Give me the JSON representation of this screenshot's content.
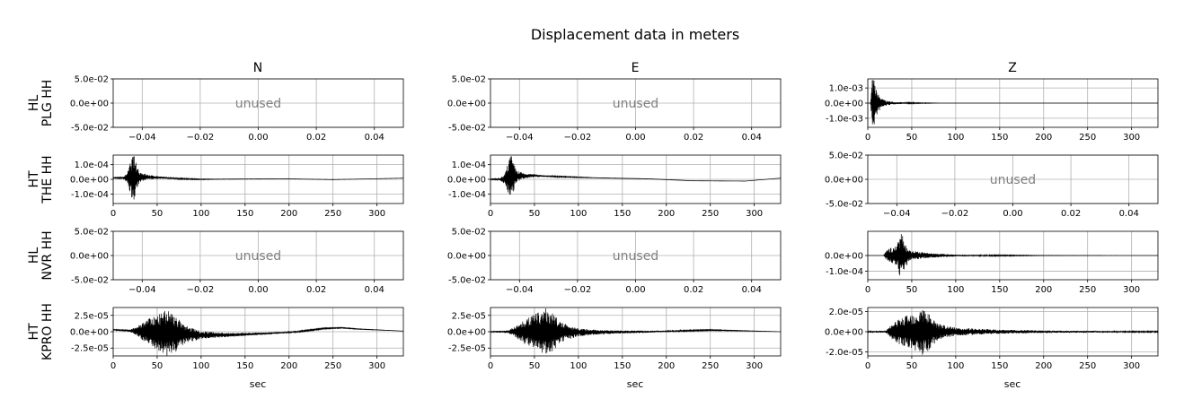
{
  "chart_data": {
    "type": "line",
    "title": "Displacement data in meters",
    "columns": [
      "N",
      "E",
      "Z"
    ],
    "row_labels": [
      [
        "HL",
        "PLG HH"
      ],
      [
        "HT",
        "THE HH"
      ],
      [
        "HL",
        "NVR HH"
      ],
      [
        "HT",
        "KPRO HH"
      ]
    ],
    "xlabel": "sec",
    "unused_label": "unused",
    "used_xlim": [
      0,
      330
    ],
    "used_xticks": [
      "0",
      "50",
      "100",
      "150",
      "200",
      "250",
      "300"
    ],
    "used_xtick_values": [
      0,
      50,
      100,
      150,
      200,
      250,
      300
    ],
    "unused_xlim": [
      -0.05,
      0.05
    ],
    "unused_xticks": [
      "−0.04",
      "−0.02",
      "0.00",
      "0.02",
      "0.04"
    ],
    "unused_xtick_values": [
      -0.04,
      -0.02,
      0,
      0.02,
      0.04
    ],
    "unused_yticks": [
      "5.0e-02",
      "0.0e+00",
      "-5.0e-02"
    ],
    "unused_ytick_values": [
      0.05,
      0,
      -0.05
    ],
    "unused_ylim": [
      -0.05,
      0.05
    ],
    "panels": [
      [
        {
          "unused": true
        },
        {
          "unused": true
        },
        {
          "unused": false,
          "ylim": [
            -0.0016,
            0.0016
          ],
          "yticks": [
            "1.0e-03",
            "0.0e+00",
            "-1.0e-03"
          ],
          "ytick_values": [
            0.001,
            0,
            -0.001
          ],
          "envelope": [
            [
              0,
              0
            ],
            [
              3,
              0
            ],
            [
              5,
              0.0016
            ],
            [
              7,
              0.0016
            ],
            [
              9,
              0.001
            ],
            [
              12,
              0.0006
            ],
            [
              16,
              0.0003
            ],
            [
              22,
              0.00015
            ],
            [
              30,
              8e-05
            ],
            [
              45,
              4e-05
            ],
            [
              60,
              2e-05
            ],
            [
              80,
              5e-06
            ],
            [
              100,
              0
            ],
            [
              330,
              0
            ]
          ]
        }
      ],
      [
        {
          "unused": false,
          "ylim": [
            -0.000165,
            0.000165
          ],
          "yticks": [
            "1.0e-04",
            "0.0e+00",
            "-1.0e-04"
          ],
          "ytick_values": [
            0.0001,
            0,
            -0.0001
          ],
          "baseline": [
            [
              0,
              1e-05
            ],
            [
              15,
              1e-05
            ],
            [
              40,
              1.5e-05
            ],
            [
              60,
              1e-05
            ],
            [
              80,
              3e-06
            ],
            [
              100,
              0
            ],
            [
              150,
              2e-06
            ],
            [
              200,
              3e-06
            ],
            [
              250,
              -2e-06
            ],
            [
              300,
              4e-06
            ],
            [
              330,
              8e-06
            ]
          ],
          "envelope": [
            [
              0,
              2e-06
            ],
            [
              10,
              4e-06
            ],
            [
              16,
              3e-05
            ],
            [
              20,
              0.00012
            ],
            [
              23,
              0.000165
            ],
            [
              26,
              0.0001
            ],
            [
              30,
              4e-05
            ],
            [
              40,
              1.5e-05
            ],
            [
              60,
              6e-06
            ],
            [
              80,
              3e-06
            ],
            [
              120,
              1e-06
            ],
            [
              330,
              0
            ]
          ]
        },
        {
          "unused": false,
          "ylim": [
            -0.000165,
            0.000165
          ],
          "yticks": [
            "1.0e-04",
            "0.0e+00",
            "-1.0e-04"
          ],
          "ytick_values": [
            0.0001,
            0,
            -0.0001
          ],
          "baseline": [
            [
              0,
              0
            ],
            [
              15,
              0
            ],
            [
              30,
              2e-05
            ],
            [
              50,
              2.5e-05
            ],
            [
              80,
              1.8e-05
            ],
            [
              120,
              1e-05
            ],
            [
              180,
              3e-06
            ],
            [
              230,
              -1e-05
            ],
            [
              290,
              -1.2e-05
            ],
            [
              330,
              8e-06
            ]
          ],
          "envelope": [
            [
              0,
              2e-06
            ],
            [
              10,
              4e-06
            ],
            [
              16,
              3e-05
            ],
            [
              20,
              0.00012
            ],
            [
              23,
              0.000165
            ],
            [
              26,
              0.0001
            ],
            [
              30,
              4e-05
            ],
            [
              40,
              1.5e-05
            ],
            [
              60,
              6e-06
            ],
            [
              80,
              3e-06
            ],
            [
              120,
              1e-06
            ],
            [
              330,
              0
            ]
          ]
        },
        {
          "unused": true
        }
      ],
      [
        {
          "unused": true
        },
        {
          "unused": true
        },
        {
          "unused": false,
          "ylim": [
            -0.000155,
            0.000155
          ],
          "yticks": [
            "0.0e+00",
            "-1.0e-04"
          ],
          "ytick_values": [
            0,
            -0.0001
          ],
          "envelope": [
            [
              0,
              0
            ],
            [
              18,
              0
            ],
            [
              20,
              2.5e-05
            ],
            [
              25,
              5e-05
            ],
            [
              32,
              6e-05
            ],
            [
              38,
              0.000155
            ],
            [
              42,
              8e-05
            ],
            [
              50,
              3e-05
            ],
            [
              70,
              1.5e-05
            ],
            [
              100,
              6e-06
            ],
            [
              150,
              3e-06
            ],
            [
              200,
              1e-06
            ],
            [
              330,
              0
            ]
          ]
        }
      ],
      [
        {
          "unused": false,
          "ylim": [
            -3.7e-05,
            3.7e-05
          ],
          "yticks": [
            "2.5e-05",
            "0.0e+00",
            "-2.5e-05"
          ],
          "ytick_values": [
            2.5e-05,
            0,
            -2.5e-05
          ],
          "baseline": [
            [
              0,
              3e-06
            ],
            [
              20,
              1.5e-06
            ],
            [
              40,
              0
            ],
            [
              60,
              -2e-06
            ],
            [
              80,
              -4e-06
            ],
            [
              100,
              -5e-06
            ],
            [
              130,
              -5e-06
            ],
            [
              170,
              -3e-06
            ],
            [
              210,
              0
            ],
            [
              240,
              5e-06
            ],
            [
              260,
              6e-06
            ],
            [
              280,
              4e-06
            ],
            [
              330,
              1e-06
            ]
          ],
          "envelope": [
            [
              0,
              1e-06
            ],
            [
              20,
              2e-06
            ],
            [
              28,
              8e-06
            ],
            [
              40,
              2e-05
            ],
            [
              55,
              3e-05
            ],
            [
              62,
              3.7e-05
            ],
            [
              70,
              3e-05
            ],
            [
              80,
              1.5e-05
            ],
            [
              100,
              6e-06
            ],
            [
              130,
              3e-06
            ],
            [
              200,
              1e-06
            ],
            [
              330,
              0
            ]
          ]
        },
        {
          "unused": false,
          "ylim": [
            -3.7e-05,
            3.7e-05
          ],
          "yticks": [
            "2.5e-05",
            "0.0e+00",
            "-2.5e-05"
          ],
          "ytick_values": [
            2.5e-05,
            0,
            -2.5e-05
          ],
          "baseline": [
            [
              0,
              0
            ],
            [
              30,
              0
            ],
            [
              100,
              -1e-06
            ],
            [
              180,
              0
            ],
            [
              250,
              2.5e-06
            ],
            [
              300,
              1e-06
            ],
            [
              330,
              0
            ]
          ],
          "envelope": [
            [
              0,
              1e-06
            ],
            [
              20,
              2e-06
            ],
            [
              28,
              8e-06
            ],
            [
              40,
              2e-05
            ],
            [
              55,
              3e-05
            ],
            [
              62,
              3.7e-05
            ],
            [
              70,
              3e-05
            ],
            [
              80,
              1.5e-05
            ],
            [
              100,
              6e-06
            ],
            [
              130,
              3e-06
            ],
            [
              200,
              1e-06
            ],
            [
              330,
              0
            ]
          ]
        },
        {
          "unused": false,
          "ylim": [
            -2.4e-05,
            2.4e-05
          ],
          "yticks": [
            "2.0e-05",
            "0.0e+00",
            "-2.0e-05"
          ],
          "ytick_values": [
            2e-05,
            0,
            -2e-05
          ],
          "baseline": [
            [
              0,
              0
            ],
            [
              330,
              0
            ]
          ],
          "envelope": [
            [
              0,
              5e-07
            ],
            [
              20,
              1e-06
            ],
            [
              28,
              8e-06
            ],
            [
              40,
              1.5e-05
            ],
            [
              55,
              2e-05
            ],
            [
              62,
              2.4e-05
            ],
            [
              70,
              1.8e-05
            ],
            [
              80,
              8e-06
            ],
            [
              100,
              4e-06
            ],
            [
              150,
              2e-06
            ],
            [
              220,
              1e-06
            ],
            [
              330,
              5e-07
            ]
          ]
        }
      ]
    ]
  }
}
